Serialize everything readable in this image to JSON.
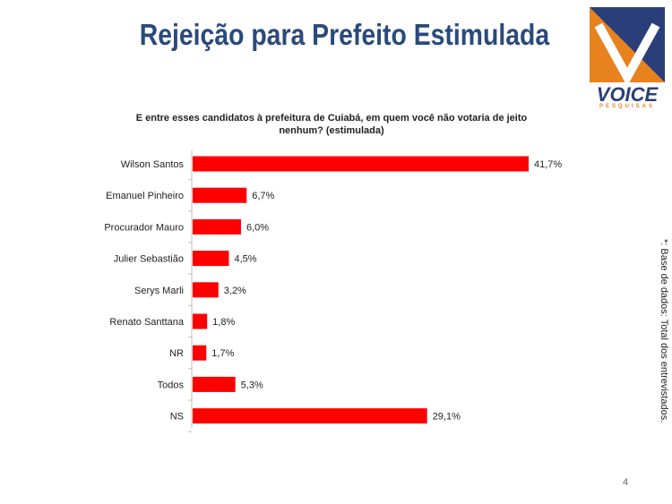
{
  "slide": {
    "title": "Rejeição para Prefeito Estimulada",
    "page_number": "4",
    "side_note": "*: Base de dados: Total dos  entrevistados."
  },
  "logo": {
    "word": "VOICE",
    "sub": "PESQUISAS",
    "colors": {
      "blue": "#2a3f7a",
      "orange": "#e8821e"
    }
  },
  "chart_data": {
    "type": "bar",
    "orientation": "horizontal",
    "title": "E entre esses candidatos à prefeitura de Cuiabá, em quem você não votaria de jeito nenhum? (estimulada)",
    "categories": [
      "Wilson Santos",
      "Emanuel Pinheiro",
      "Procurador Mauro",
      "Julier Sebastião",
      "Serys Marli",
      "Renato Santtana",
      "NR",
      "Todos",
      "NS"
    ],
    "values": [
      41.7,
      6.7,
      6.0,
      4.5,
      3.2,
      1.8,
      1.7,
      5.3,
      29.1
    ],
    "value_labels": [
      "41,7%",
      "6,7%",
      "6,0%",
      "4,5%",
      "3,2%",
      "1,8%",
      "1,7%",
      "5,3%",
      "29,1%"
    ],
    "bar_color": "#ff0000",
    "xlim": [
      0,
      42
    ],
    "grid": false,
    "legend": "none"
  }
}
